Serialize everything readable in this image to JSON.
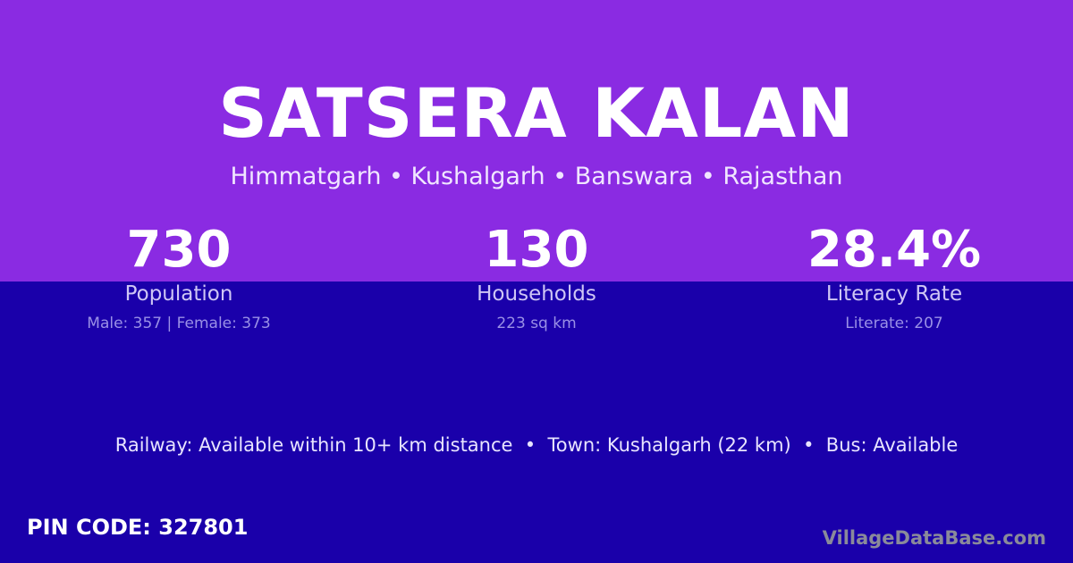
{
  "village": {
    "name": "SATSERA KALAN",
    "breadcrumb": "Himmatgarh • Kushalgarh • Banswara • Rajasthan"
  },
  "stats": [
    {
      "value": "730",
      "label": "Population",
      "detail": "Male: 357 | Female: 373"
    },
    {
      "value": "130",
      "label": "Households",
      "detail": "223 sq km"
    },
    {
      "value": "28.4%",
      "label": "Literacy Rate",
      "detail": "Literate: 207"
    }
  ],
  "access": "Railway: Available within 10+ km distance  •  Town: Kushalgarh (22 km)  •  Bus: Available",
  "pin": "PIN CODE: 327801",
  "watermark": "VillageDataBase.com",
  "colors": {
    "top": "#8a2be2",
    "bottom": "#1a00aa"
  }
}
